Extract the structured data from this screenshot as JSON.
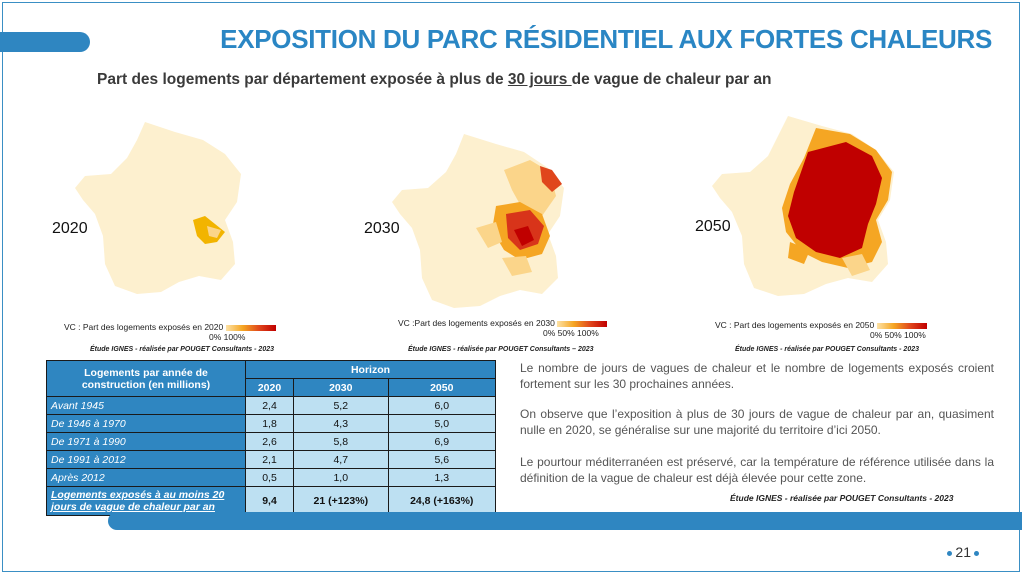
{
  "title": "EXPOSITION DU PARC RÉSIDENTIEL AUX FORTES CHALEURS",
  "subtitle": {
    "before": "Part des logements par département exposée à plus de ",
    "underlined": "30 jours ",
    "after": "de vague de chaleur par an"
  },
  "maps": [
    {
      "year": "2020",
      "legend_label": "VC : Part des logements exposés en 2020",
      "legend_ticks": "0%      100%",
      "credit": "Étude IGNES - réalisée par POUGET Consultants - 2023"
    },
    {
      "year": "2030",
      "legend_label": "VC :Part des logements exposés en 2030",
      "legend_ticks": "0%  50% 100%",
      "credit": "Étude IGNES - réalisée par POUGET Consultants – 2023"
    },
    {
      "year": "2050",
      "legend_label": "VC : Part des logements exposés en 2050",
      "legend_ticks": "0%  50% 100%",
      "credit": "Étude IGNES - réalisée par POUGET Consultants - 2023"
    }
  ],
  "table": {
    "row_header": "Logements par année de construction (en millions)",
    "group_header": "Horizon",
    "columns": [
      "2020",
      "2030",
      "2050"
    ],
    "rows": [
      {
        "label": "Avant 1945",
        "values": [
          "2,4",
          "5,2",
          "6,0"
        ]
      },
      {
        "label": "De 1946 à 1970",
        "values": [
          "1,8",
          "4,3",
          "5,0"
        ]
      },
      {
        "label": "De 1971 à 1990",
        "values": [
          "2,6",
          "5,8",
          "6,9"
        ]
      },
      {
        "label": "De 1991 à 2012",
        "values": [
          "2,1",
          "4,7",
          "5,6"
        ]
      },
      {
        "label": "Après 2012",
        "values": [
          "0,5",
          "1,0",
          "1,3"
        ]
      }
    ],
    "total": {
      "label": "Logements exposés à au moins 20 jours de vague de chaleur par an",
      "values": [
        "9,4",
        "21 (+123%)",
        "24,8 (+163%)"
      ]
    }
  },
  "paragraphs": [
    "Le nombre de jours de vagues de chaleur et le nombre de logements exposés croient fortement sur les 30 prochaines années.",
    "On observe que l’exposition à plus de 30 jours de vague de chaleur par an, quasiment nulle en 2020, se généralise sur une majorité du territoire d’ici 2050.",
    "Le pourtour méditerranéen est préservé, car la température de référence utilisée dans la définition de la vague de chaleur est déjà élevée pour cette zone."
  ],
  "study_credit": "Étude IGNES - réalisée par POUGET Consultants - 2023",
  "page_number": "21",
  "colors": {
    "accent": "#2f86c1",
    "light_cell": "#bde0f2",
    "map_base": "#fdf0cf",
    "heat_low": "#fbd58a",
    "heat_mid": "#f5a623",
    "heat_high": "#c00000"
  }
}
